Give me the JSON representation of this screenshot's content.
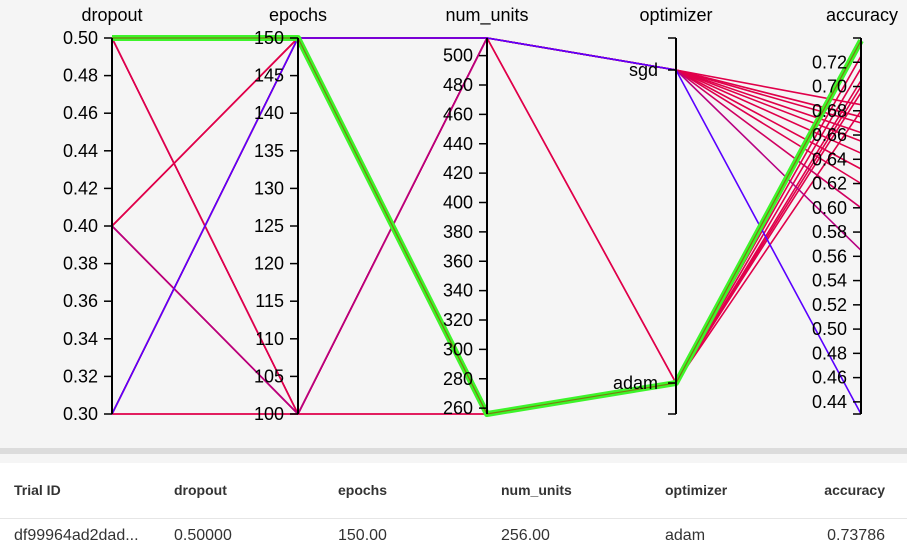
{
  "chart_data": {
    "type": "parallel-coordinates",
    "axes": [
      {
        "name": "dropout",
        "kind": "numeric",
        "range": [
          0.3,
          0.5
        ],
        "ticks": [
          "0.30",
          "0.32",
          "0.34",
          "0.36",
          "0.38",
          "0.40",
          "0.42",
          "0.44",
          "0.46",
          "0.48",
          "0.50"
        ]
      },
      {
        "name": "epochs",
        "kind": "numeric",
        "range": [
          100,
          150
        ],
        "ticks": [
          "100",
          "105",
          "110",
          "115",
          "120",
          "125",
          "130",
          "135",
          "140",
          "145",
          "150"
        ]
      },
      {
        "name": "num_units",
        "kind": "numeric",
        "range": [
          256,
          512
        ],
        "ticks": [
          "260",
          "280",
          "300",
          "320",
          "340",
          "360",
          "380",
          "400",
          "420",
          "440",
          "460",
          "480",
          "500"
        ]
      },
      {
        "name": "optimizer",
        "kind": "categorical",
        "categories": [
          "sgd",
          "adam"
        ]
      },
      {
        "name": "accuracy",
        "kind": "numeric",
        "range": [
          0.43,
          0.74
        ],
        "ticks": [
          "0.44",
          "0.46",
          "0.48",
          "0.50",
          "0.52",
          "0.54",
          "0.56",
          "0.58",
          "0.60",
          "0.62",
          "0.64",
          "0.66",
          "0.68",
          "0.70",
          "0.72"
        ]
      }
    ],
    "trials": [
      {
        "dropout": 0.5,
        "epochs": 150,
        "num_units": 256,
        "optimizer": "adam",
        "accuracy": 0.73786,
        "highlighted": true
      },
      {
        "dropout": 0.4,
        "epochs": 150,
        "num_units": 256,
        "optimizer": "adam",
        "accuracy": 0.725
      },
      {
        "dropout": 0.3,
        "epochs": 150,
        "num_units": 256,
        "optimizer": "adam",
        "accuracy": 0.715
      },
      {
        "dropout": 0.5,
        "epochs": 100,
        "num_units": 512,
        "optimizer": "adam",
        "accuracy": 0.705
      },
      {
        "dropout": 0.4,
        "epochs": 100,
        "num_units": 512,
        "optimizer": "adam",
        "accuracy": 0.7
      },
      {
        "dropout": 0.3,
        "epochs": 100,
        "num_units": 256,
        "optimizer": "adam",
        "accuracy": 0.695
      },
      {
        "dropout": 0.5,
        "epochs": 150,
        "num_units": 512,
        "optimizer": "sgd",
        "accuracy": 0.685
      },
      {
        "dropout": 0.4,
        "epochs": 100,
        "num_units": 256,
        "optimizer": "adam",
        "accuracy": 0.68
      },
      {
        "dropout": 0.5,
        "epochs": 150,
        "num_units": 512,
        "optimizer": "sgd",
        "accuracy": 0.675
      },
      {
        "dropout": 0.3,
        "epochs": 150,
        "num_units": 512,
        "optimizer": "sgd",
        "accuracy": 0.67
      },
      {
        "dropout": 0.4,
        "epochs": 150,
        "num_units": 512,
        "optimizer": "sgd",
        "accuracy": 0.662
      },
      {
        "dropout": 0.5,
        "epochs": 100,
        "num_units": 512,
        "optimizer": "sgd",
        "accuracy": 0.655
      },
      {
        "dropout": 0.3,
        "epochs": 100,
        "num_units": 512,
        "optimizer": "sgd",
        "accuracy": 0.645
      },
      {
        "dropout": 0.4,
        "epochs": 150,
        "num_units": 512,
        "optimizer": "sgd",
        "accuracy": 0.632
      },
      {
        "dropout": 0.5,
        "epochs": 100,
        "num_units": 512,
        "optimizer": "sgd",
        "accuracy": 0.62
      },
      {
        "dropout": 0.3,
        "epochs": 150,
        "num_units": 512,
        "optimizer": "sgd",
        "accuracy": 0.6
      },
      {
        "dropout": 0.4,
        "epochs": 100,
        "num_units": 512,
        "optimizer": "sgd",
        "accuracy": 0.565
      },
      {
        "dropout": 0.3,
        "epochs": 150,
        "num_units": 512,
        "optimizer": "sgd",
        "accuracy": 0.43
      }
    ],
    "colors": {
      "highlight": "#3df52a",
      "low": "#5a00ff",
      "high": "#e0004a"
    }
  },
  "table": {
    "headers": [
      "Trial ID",
      "dropout",
      "epochs",
      "num_units",
      "optimizer",
      "accuracy"
    ],
    "row": {
      "trial_id": "df99964ad2dad...",
      "dropout": "0.50000",
      "epochs": "150.00",
      "num_units": "256.00",
      "optimizer": "adam",
      "accuracy": "0.73786"
    }
  }
}
